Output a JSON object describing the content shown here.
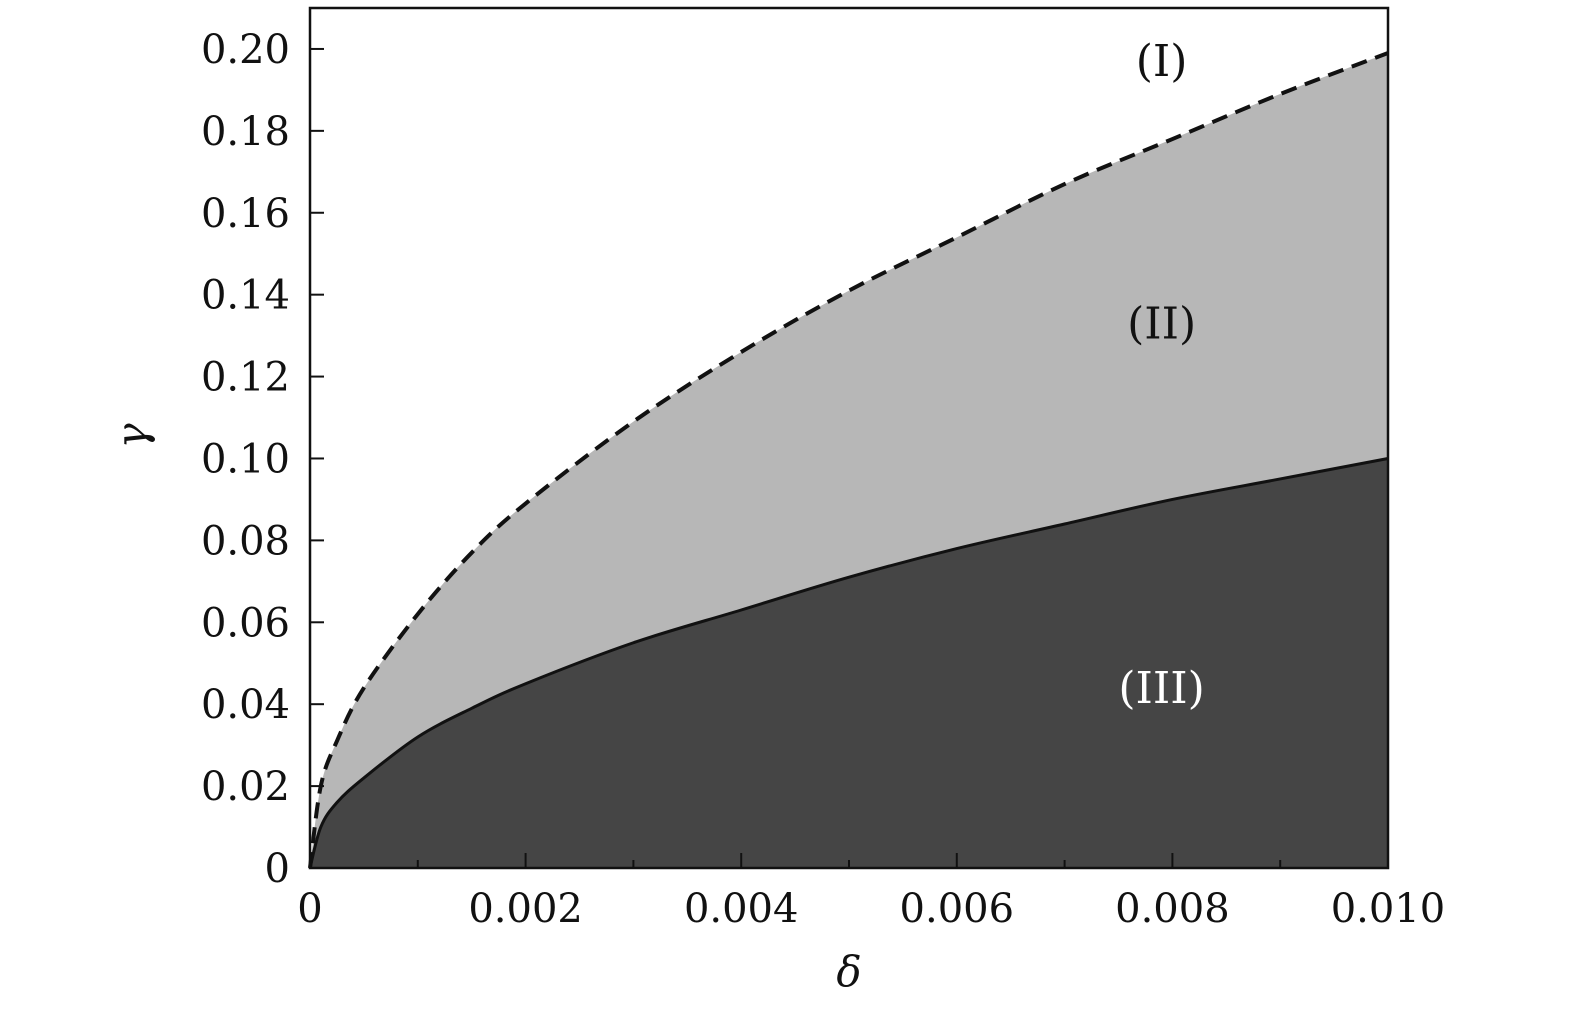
{
  "chart_data": {
    "type": "area",
    "xlabel": "δ",
    "ylabel": "γ",
    "xlim": [
      0,
      0.01
    ],
    "ylim": [
      0,
      0.21
    ],
    "x_ticks": [
      0,
      0.002,
      0.004,
      0.006,
      0.008,
      0.01
    ],
    "x_tick_labels": [
      "0",
      "0.002",
      "0.004",
      "0.006",
      "0.008",
      "0.010"
    ],
    "x_minor_ticks": [
      0.001,
      0.003,
      0.005,
      0.007,
      0.009
    ],
    "y_ticks": [
      0,
      0.02,
      0.04,
      0.06,
      0.08,
      0.1,
      0.12,
      0.14,
      0.16,
      0.18,
      0.2
    ],
    "y_tick_labels": [
      "0",
      "0.02",
      "0.04",
      "0.06",
      "0.08",
      "0.10",
      "0.12",
      "0.14",
      "0.16",
      "0.18",
      "0.20"
    ],
    "grid": false,
    "x": [
      0,
      0.0001,
      0.00025,
      0.0005,
      0.001,
      0.0015,
      0.002,
      0.003,
      0.004,
      0.005,
      0.006,
      0.007,
      0.008,
      0.009,
      0.01
    ],
    "series": [
      {
        "style": "dashed",
        "color": "#111111",
        "values": [
          0,
          0.02,
          0.031,
          0.044,
          0.062,
          0.077,
          0.089,
          0.109,
          0.126,
          0.141,
          0.154,
          0.167,
          0.178,
          0.189,
          0.199
        ]
      },
      {
        "style": "solid",
        "color": "#111111",
        "values": [
          0,
          0.01,
          0.016,
          0.022,
          0.032,
          0.039,
          0.045,
          0.055,
          0.063,
          0.071,
          0.078,
          0.084,
          0.09,
          0.095,
          0.1
        ]
      }
    ],
    "regions": [
      {
        "label": "(I)",
        "fill": "#ffffff",
        "text_color": "#111111",
        "label_x": 0.0079,
        "label_y": 0.197
      },
      {
        "label": "(II)",
        "fill": "#b7b7b7",
        "text_color": "#111111",
        "label_x": 0.0079,
        "label_y": 0.133
      },
      {
        "label": "(III)",
        "fill": "#454545",
        "text_color": "#ffffff",
        "label_x": 0.0079,
        "label_y": 0.044
      }
    ]
  }
}
